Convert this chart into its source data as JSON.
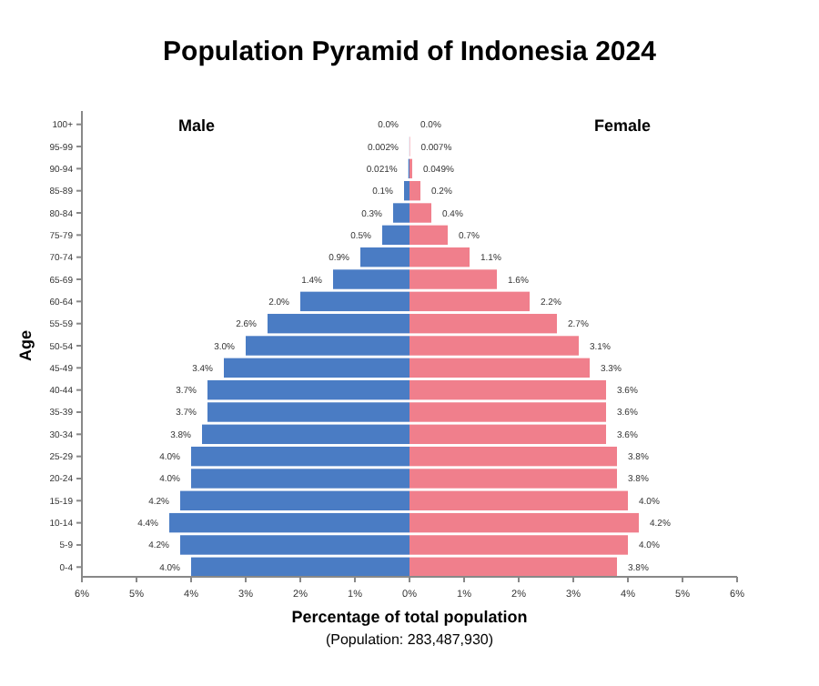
{
  "chart_data": [
    {
      "type": "bar",
      "orientation": "horizontal",
      "title": "Population Pyramid of Indonesia 2024",
      "subtitle": "Male",
      "xlabel": "Percentage of total population",
      "ylabel": "Age",
      "annotations": [
        "(Population: 283,487,930)"
      ],
      "categories": [
        "100+",
        "95-99",
        "90-94",
        "85-89",
        "80-84",
        "75-79",
        "70-74",
        "65-69",
        "60-64",
        "55-59",
        "50-54",
        "45-49",
        "40-44",
        "35-39",
        "30-34",
        "25-29",
        "20-24",
        "15-19",
        "10-14",
        "5-9",
        "0-4"
      ],
      "series": [
        {
          "color": "#4a7cc4",
          "values": [
            0,
            0.002,
            0.021,
            0.1,
            0.3,
            0.5,
            0.9,
            1.4,
            2.0,
            2.6,
            3.0,
            3.4,
            3.7,
            3.7,
            3.8,
            4.0,
            4.0,
            4.2,
            4.4,
            4.2,
            4.0
          ],
          "value_labels": [
            "0.0%",
            "0.002%",
            "0.021%",
            "0.1%",
            "0.3%",
            "0.5%",
            "0.9%",
            "1.4%",
            "2.0%",
            "2.6%",
            "3.0%",
            "3.4%",
            "3.7%",
            "3.7%",
            "3.8%",
            "4.0%",
            "4.0%",
            "4.2%",
            "4.4%",
            "4.2%",
            "4.0%"
          ]
        }
      ],
      "xlim": [
        6,
        0
      ],
      "xticks": [
        {
          "value": 6,
          "label": "6%"
        },
        {
          "value": 5,
          "label": "5%"
        },
        {
          "value": 4,
          "label": "4%"
        },
        {
          "value": 3,
          "label": "3%"
        },
        {
          "value": 2,
          "label": "2%"
        },
        {
          "value": 1,
          "label": "1%"
        },
        {
          "value": 0,
          "label": null
        }
      ]
    },
    {
      "type": "bar",
      "orientation": "horizontal",
      "subtitle": "Female",
      "tick_labels": "x",
      "categories": [
        null,
        null,
        null,
        null,
        null,
        null,
        null,
        null,
        null,
        null,
        null,
        null,
        null,
        null,
        null,
        null,
        null,
        null,
        null,
        null,
        null
      ],
      "series": [
        {
          "color": "#f07f8c",
          "values": [
            0,
            0.007,
            0.049,
            0.2,
            0.4,
            0.7,
            1.1,
            1.6,
            2.2,
            2.7,
            3.1,
            3.3,
            3.6,
            3.6,
            3.6,
            3.8,
            3.8,
            4.0,
            4.2,
            4.0,
            3.8
          ],
          "value_labels": [
            "0.0%",
            "0.007%",
            "0.049%",
            "0.2%",
            "0.4%",
            "0.7%",
            "1.1%",
            "1.6%",
            "2.2%",
            "2.7%",
            "3.1%",
            "3.3%",
            "3.6%",
            "3.6%",
            "3.6%",
            "3.8%",
            "3.8%",
            "4.0%",
            "4.2%",
            "4.0%",
            "3.8%"
          ]
        }
      ],
      "xlim": [
        0,
        6
      ],
      "xticks": [
        {
          "value": 0,
          "label": "0%"
        },
        {
          "value": 1,
          "label": "1%"
        },
        {
          "value": 2,
          "label": "2%"
        },
        {
          "value": 3,
          "label": "3%"
        },
        {
          "value": 4,
          "label": "4%"
        },
        {
          "value": 5,
          "label": "5%"
        },
        {
          "value": 6,
          "label": "6%"
        }
      ]
    }
  ]
}
